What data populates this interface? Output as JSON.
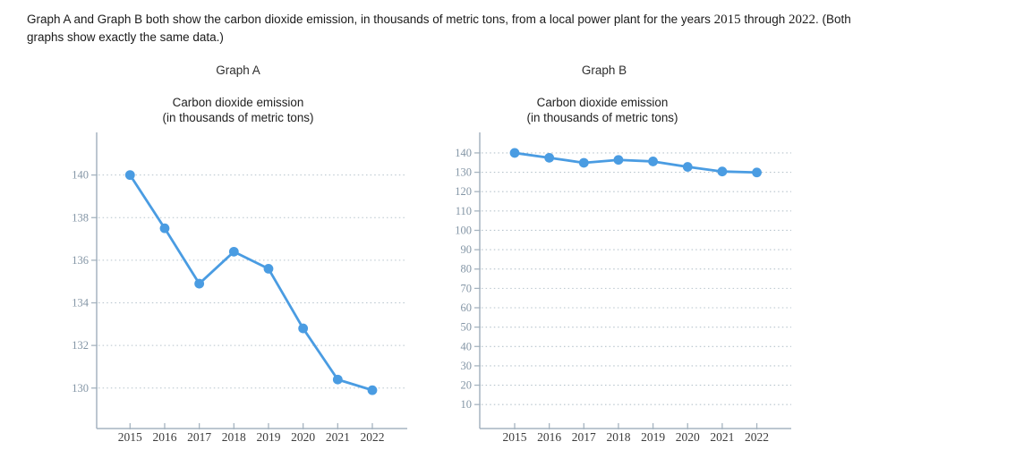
{
  "question": {
    "before_years": "Graph A and Graph B both show the carbon dioxide emission, in thousands of metric tons, from a local power plant for the years ",
    "year_start": "2015",
    "between_years": " through ",
    "year_end": "2022",
    "after_years": ". (Both",
    "line2": "graphs show exactly the same data.)"
  },
  "colors": {
    "line": "#4a9ce2",
    "axis": "#a6b4c0",
    "grid": "#b6c3cc",
    "ytick_label": "#8496a6",
    "xtick_label": "#3d3d3d",
    "text": "#1a1a1a"
  },
  "chart_data": [
    {
      "id": "graph-a",
      "type": "line",
      "title": "Graph A",
      "subtitle_line1": "Carbon dioxide emission",
      "subtitle_line2": "(in thousands of metric tons)",
      "xlabel": "",
      "ylabel": "",
      "categories": [
        "2015",
        "2016",
        "2017",
        "2018",
        "2019",
        "2020",
        "2021",
        "2022"
      ],
      "values": [
        140,
        137.5,
        134.9,
        136.4,
        135.6,
        132.8,
        130.4,
        129.9
      ],
      "yticks": [
        130,
        132,
        134,
        136,
        138,
        140
      ],
      "ylim": [
        128.1,
        142.0
      ],
      "gridlines": "dotted horizontal",
      "legend": "none"
    },
    {
      "id": "graph-b",
      "type": "line",
      "title": "Graph B",
      "subtitle_line1": "Carbon dioxide emission",
      "subtitle_line2": "(in thousands of metric tons)",
      "xlabel": "",
      "ylabel": "",
      "categories": [
        "2015",
        "2016",
        "2017",
        "2018",
        "2019",
        "2020",
        "2021",
        "2022"
      ],
      "values": [
        140,
        137.5,
        134.9,
        136.4,
        135.6,
        132.8,
        130.4,
        129.9
      ],
      "yticks": [
        10,
        20,
        30,
        40,
        50,
        60,
        70,
        80,
        90,
        100,
        110,
        120,
        130,
        140
      ],
      "ylim": [
        -2.4,
        150.6
      ],
      "gridlines": "dotted horizontal",
      "legend": "none"
    }
  ]
}
